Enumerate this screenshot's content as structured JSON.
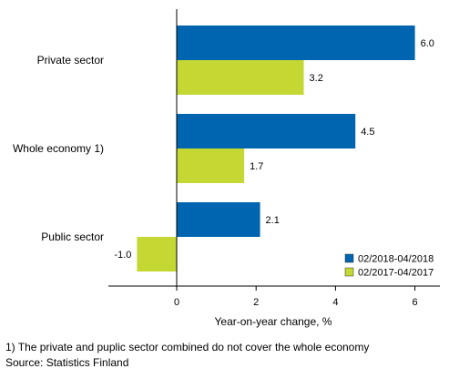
{
  "chart_data": {
    "type": "bar",
    "orientation": "horizontal",
    "categories": [
      "Private sector",
      "Whole economy 1)",
      "Public sector"
    ],
    "series": [
      {
        "name": "02/2018-04/2018",
        "values": [
          6.0,
          4.5,
          2.1
        ],
        "color": "#0065b0"
      },
      {
        "name": "02/2017-04/2017",
        "values": [
          3.2,
          1.7,
          -1.0
        ],
        "color": "#c4d733"
      }
    ],
    "data_labels": [
      [
        "6.0",
        "4.5",
        "2.1"
      ],
      [
        "3.2",
        "1.7",
        "-1.0"
      ]
    ],
    "xlabel": "Year-on-year change, %",
    "xlim": [
      -1.7,
      6.6
    ],
    "xticks": [
      0,
      2,
      4,
      6
    ],
    "grid": false,
    "legend_position": "bottom-right"
  },
  "footnotes": {
    "note": "1) The private and pupl​ic sector combined do not cover the whole economy",
    "source": "Source: Statistics Finland"
  }
}
